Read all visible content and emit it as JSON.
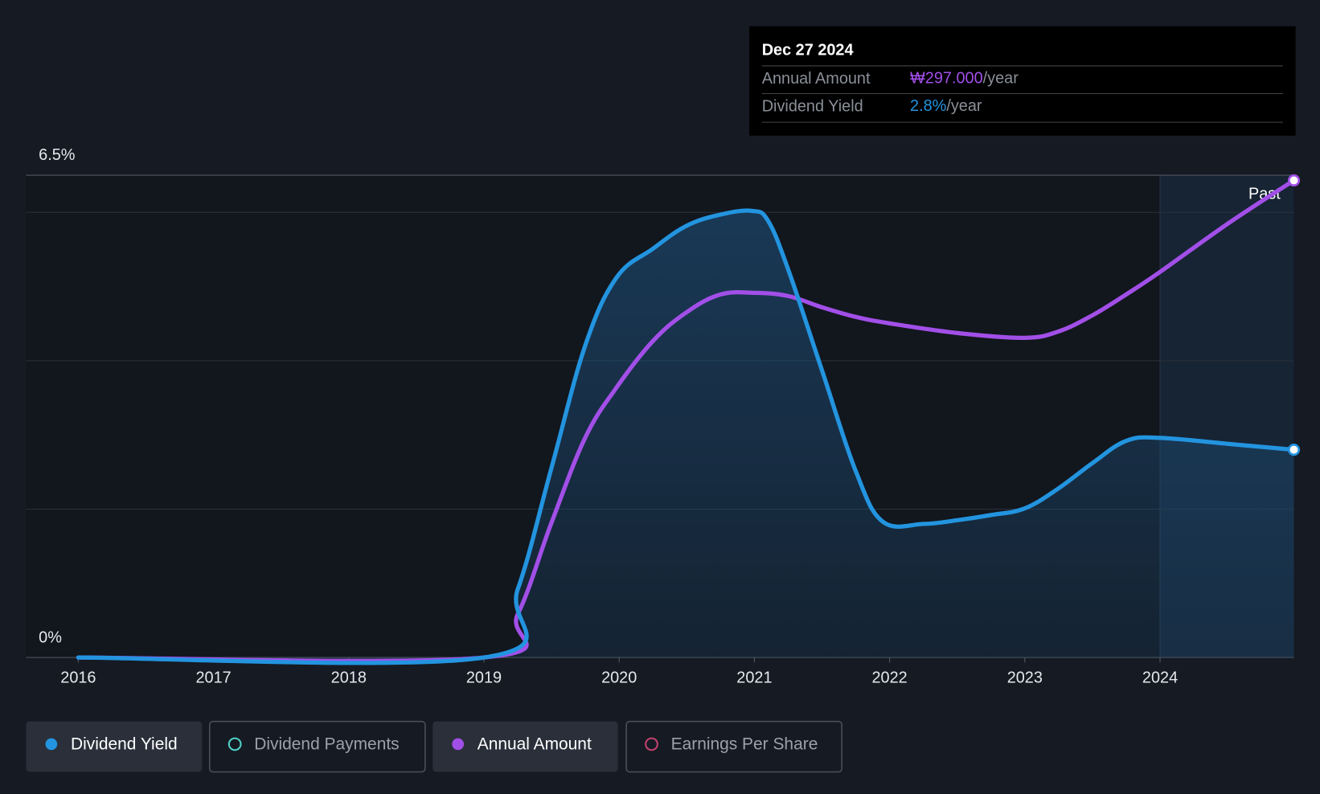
{
  "chart_data": {
    "type": "line",
    "x_dates_note_free": null,
    "series": [
      {
        "name": "Dividend Yield",
        "color": "#2394df",
        "axis": "y",
        "x": [
          2016,
          2019,
          2019.25,
          2019.5,
          2019.75,
          2019.98,
          2020.25,
          2020.5,
          2020.75,
          2020.98,
          2021.1,
          2021.25,
          2021.5,
          2021.75,
          2021.95,
          2022.25,
          2022.5,
          2022.75,
          2023,
          2023.25,
          2023.5,
          2023.75,
          2024,
          2024.5,
          2024.99
        ],
        "values": [
          0,
          0,
          0.92,
          2.56,
          4.21,
          5.12,
          5.51,
          5.82,
          5.97,
          6.02,
          5.89,
          5.23,
          3.87,
          2.51,
          1.83,
          1.8,
          1.85,
          1.92,
          2.01,
          2.28,
          2.62,
          2.92,
          2.96,
          2.88,
          2.8
        ]
      },
      {
        "name": "Annual Amount",
        "color": "#a24fe8",
        "axis": "y2",
        "x": [
          2016,
          2019,
          2019.25,
          2019.5,
          2019.75,
          2019.98,
          2020.25,
          2020.5,
          2020.75,
          2021,
          2021.25,
          2021.5,
          2021.75,
          2022,
          2022.5,
          2023,
          2023.25,
          2023.5,
          2023.75,
          2024,
          2024.5,
          2024.99
        ],
        "values": [
          0,
          0,
          27,
          84,
          137,
          168,
          197,
          215,
          226,
          227,
          225,
          218,
          212,
          208,
          202,
          199,
          203,
          213,
          226,
          240,
          270,
          297
        ]
      }
    ],
    "other_legend": [
      {
        "name": "Dividend Payments",
        "color": "#4fd1c5"
      },
      {
        "name": "Earnings Per Share",
        "color": "#c2416e"
      }
    ],
    "xlim": [
      2015.614,
      2024.99
    ],
    "xticks": [
      2016,
      2017,
      2018,
      2019,
      2020,
      2021,
      2022,
      2023,
      2024
    ],
    "ylim": [
      0,
      6.5
    ],
    "yticks": [
      {
        "value": 0,
        "label": "0%"
      },
      {
        "value": 6.5,
        "label": "6.5%"
      }
    ],
    "ygrid": [
      2,
      4,
      6
    ],
    "y2lim": [
      0,
      300.2
    ],
    "past_start": 2024,
    "past_label": "Past",
    "tooltip": {
      "date": "Dec 27 2024",
      "rows": [
        {
          "label": "Annual Amount",
          "value": "₩297.000",
          "unit": "/year",
          "color": "#a24fe8"
        },
        {
          "label": "Dividend Yield",
          "value": "2.8%",
          "unit": "/year",
          "color": "#2394df"
        }
      ]
    }
  }
}
